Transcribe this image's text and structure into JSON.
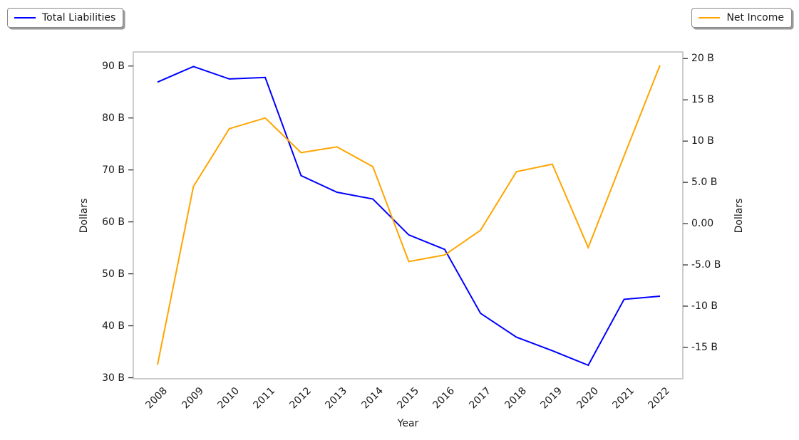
{
  "figure": {
    "background": "#ffffff"
  },
  "legends": {
    "left": {
      "label": "Total Liabilities",
      "line_color": "#0000ff"
    },
    "right": {
      "label": "Net Income",
      "line_color": "#ffa500"
    }
  },
  "axes": {
    "x": {
      "label": "Year",
      "tick_labels": [
        "2008",
        "2009",
        "2010",
        "2011",
        "2012",
        "2013",
        "2014",
        "2015",
        "2016",
        "2017",
        "2018",
        "2019",
        "2020",
        "2021",
        "2022"
      ],
      "tick_rotation_deg": 45
    },
    "y_left": {
      "label": "Dollars",
      "ticks": [
        {
          "value": 90,
          "label": "90 B"
        },
        {
          "value": 80,
          "label": "80 B"
        },
        {
          "value": 70,
          "label": "70 B"
        },
        {
          "value": 60,
          "label": "60 B"
        },
        {
          "value": 50,
          "label": "50 B"
        },
        {
          "value": 40,
          "label": "40 B"
        },
        {
          "value": 30,
          "label": "30 B"
        }
      ]
    },
    "y_right": {
      "label": "Dollars",
      "ticks": [
        {
          "value": 20,
          "label": "20 B"
        },
        {
          "value": 15,
          "label": "15 B"
        },
        {
          "value": 10,
          "label": "10 B"
        },
        {
          "value": 5,
          "label": "5.0 B"
        },
        {
          "value": 0,
          "label": "0.00"
        },
        {
          "value": -5,
          "label": "-5.0 B"
        },
        {
          "value": -10,
          "label": "-10 B"
        },
        {
          "value": -15,
          "label": "-15 B"
        }
      ]
    }
  },
  "chart_data": {
    "type": "line",
    "title": "",
    "xlabel": "Year",
    "ylabel_left": "Dollars",
    "ylabel_right": "Dollars",
    "x": [
      2008,
      2009,
      2010,
      2011,
      2012,
      2013,
      2014,
      2015,
      2016,
      2017,
      2018,
      2019,
      2020,
      2021,
      2022
    ],
    "series": [
      {
        "name": "Total Liabilities",
        "axis": "left",
        "color": "#0000ff",
        "units": "billions of dollars",
        "values": [
          86.9,
          89.9,
          87.5,
          87.8,
          68.9,
          65.7,
          64.4,
          57.5,
          54.7,
          42.4,
          37.8,
          35.2,
          32.4,
          45.1,
          45.7
        ]
      },
      {
        "name": "Net Income",
        "axis": "right",
        "color": "#ffa500",
        "units": "billions of dollars",
        "values": [
          -17.1,
          4.5,
          11.5,
          12.8,
          8.6,
          9.3,
          6.9,
          -4.6,
          -3.8,
          -0.8,
          6.3,
          7.2,
          -2.9,
          8.2,
          19.2
        ]
      }
    ],
    "ylim_left": [
      29.8,
      92.7
    ],
    "ylim_right": [
      -18.8,
      20.8
    ],
    "grid": false,
    "legend_positions": [
      "outside top-left",
      "outside top-right"
    ]
  },
  "colors": {
    "spine": "#cccccc",
    "tick_mark": "#333333",
    "text": "#1a1a1a"
  }
}
